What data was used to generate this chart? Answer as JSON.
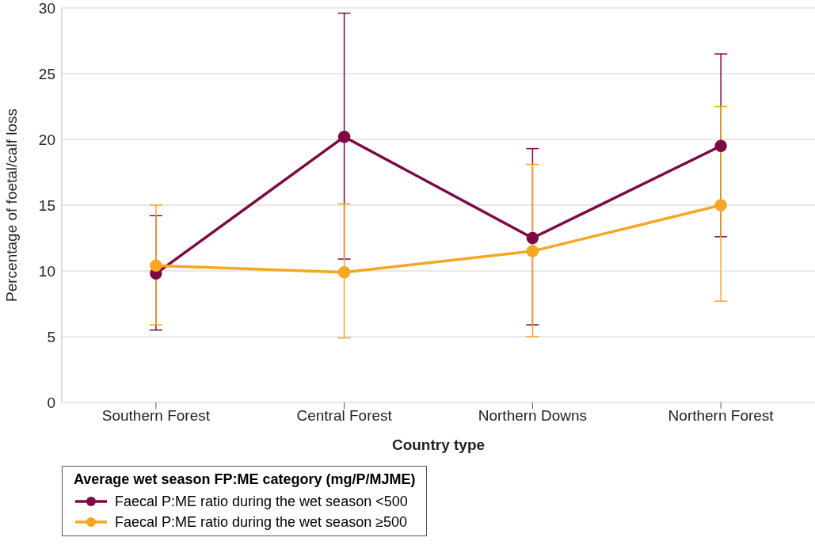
{
  "chart_data": {
    "type": "line",
    "xlabel": "Country type",
    "ylabel": "Percentage of foetal/calf loss",
    "legend_title": "Average wet season FP:ME category (mg/P/MJME)",
    "categories": [
      "Southern Forest",
      "Central Forest",
      "Northern Downs",
      "Northern Forest"
    ],
    "series": [
      {
        "name": "Faecal P:ME ratio during the wet season <500",
        "color": "#7b0a45",
        "values": [
          9.8,
          20.2,
          12.5,
          19.5
        ],
        "errors": [
          [
            5.5,
            14.2
          ],
          [
            10.9,
            29.6
          ],
          [
            5.9,
            19.3
          ],
          [
            12.6,
            26.5
          ]
        ]
      },
      {
        "name": "Faecal P:ME ratio during the wet season ≥500",
        "color": "#f5a623",
        "values": [
          10.4,
          9.9,
          11.5,
          15.0
        ],
        "errors": [
          [
            5.9,
            15.0
          ],
          [
            4.9,
            15.1
          ],
          [
            5.0,
            18.1
          ],
          [
            7.7,
            22.5
          ]
        ]
      }
    ],
    "ylim": [
      0,
      30
    ],
    "yticks": [
      0,
      5,
      10,
      15,
      20,
      25,
      30
    ],
    "grid": "y",
    "legend": "bottom left",
    "marker": "circle",
    "line_style": "solid"
  }
}
